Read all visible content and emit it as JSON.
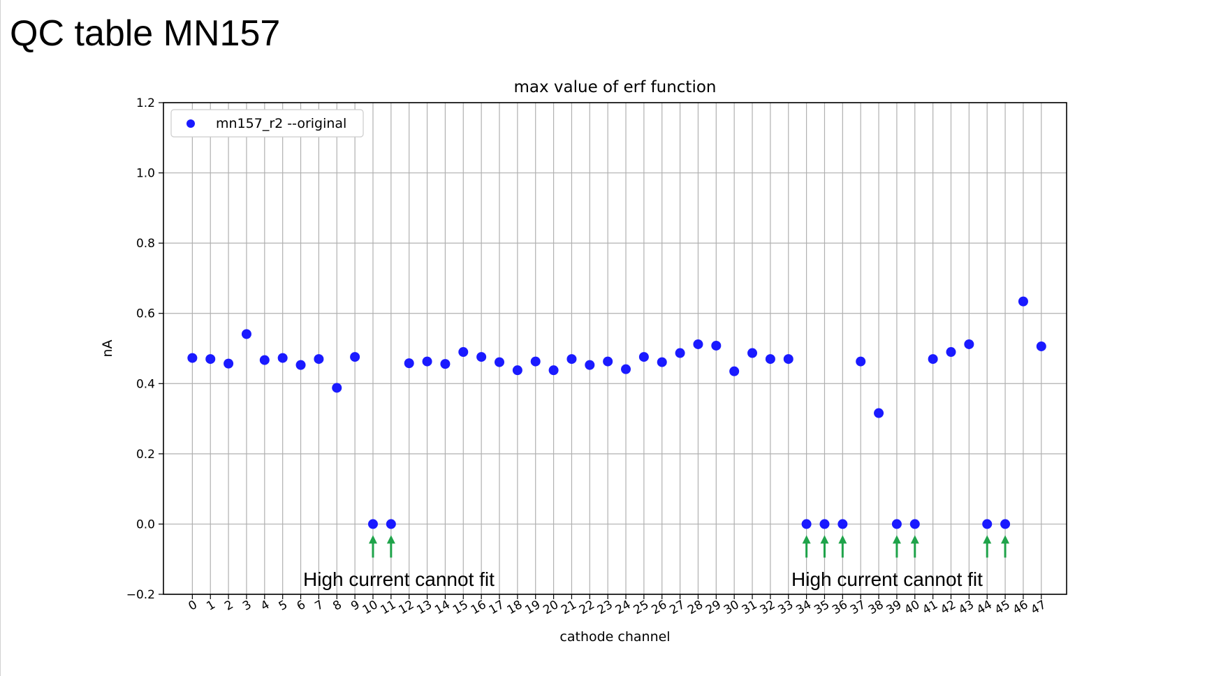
{
  "slide": {
    "title": "QC table MN157"
  },
  "chart_data": {
    "type": "scatter",
    "title": "max value of erf function",
    "xlabel": "cathode channel",
    "ylabel": "nA",
    "ylim": [
      -0.2,
      1.2
    ],
    "xlim": [
      -1.6,
      48.4
    ],
    "yticks": [
      -0.2,
      0.0,
      0.2,
      0.4,
      0.6,
      0.8,
      1.0,
      1.2
    ],
    "ytick_labels": [
      "−0.2",
      "0.0",
      "0.2",
      "0.4",
      "0.6",
      "0.8",
      "1.0",
      "1.2"
    ],
    "xticks": [
      0,
      1,
      2,
      3,
      4,
      5,
      6,
      7,
      8,
      9,
      10,
      11,
      12,
      13,
      14,
      15,
      16,
      17,
      18,
      19,
      20,
      21,
      22,
      23,
      24,
      25,
      26,
      27,
      28,
      29,
      30,
      31,
      32,
      33,
      34,
      35,
      36,
      37,
      38,
      39,
      40,
      41,
      42,
      43,
      44,
      45,
      46,
      47
    ],
    "xtick_labels": [
      "0",
      "1",
      "2",
      "3",
      "4",
      "5",
      "6",
      "7",
      "8",
      "9",
      "10",
      "11",
      "12",
      "13",
      "14",
      "15",
      "16",
      "17",
      "18",
      "19",
      "20",
      "21",
      "22",
      "23",
      "24",
      "25",
      "26",
      "27",
      "28",
      "29",
      "30",
      "31",
      "32",
      "33",
      "34",
      "35",
      "36",
      "37",
      "38",
      "39",
      "40",
      "41",
      "42",
      "43",
      "44",
      "45",
      "46",
      "47"
    ],
    "grid": true,
    "legend_position": "top-left",
    "series": [
      {
        "name": "mn157_r2 --original",
        "color": "#1a1aff",
        "x": [
          0,
          1,
          2,
          3,
          4,
          5,
          6,
          7,
          8,
          9,
          10,
          11,
          12,
          13,
          14,
          15,
          16,
          17,
          18,
          19,
          20,
          21,
          22,
          23,
          24,
          25,
          26,
          27,
          28,
          29,
          30,
          31,
          32,
          33,
          34,
          35,
          36,
          37,
          38,
          39,
          40,
          41,
          42,
          43,
          44,
          45,
          46,
          47
        ],
        "y": [
          0.473,
          0.47,
          0.457,
          0.541,
          0.467,
          0.473,
          0.453,
          0.47,
          0.388,
          0.476,
          0.0,
          0.0,
          0.458,
          0.463,
          0.456,
          0.49,
          0.476,
          0.461,
          0.438,
          0.463,
          0.438,
          0.47,
          0.453,
          0.463,
          0.441,
          0.476,
          0.461,
          0.487,
          0.512,
          0.508,
          0.435,
          0.487,
          0.47,
          0.47,
          0.0,
          0.0,
          0.0,
          0.463,
          0.316,
          0.0,
          0.0,
          0.47,
          0.49,
          0.512,
          0.0,
          0.0,
          0.634,
          0.506
        ]
      }
    ],
    "annotations": [
      {
        "text": "High current cannot fit",
        "arrow_channels": [
          10,
          11
        ],
        "arrow_color": "#1fa34a"
      },
      {
        "text": "High current cannot fit",
        "arrow_channels": [
          34,
          35,
          36,
          39,
          40,
          44,
          45
        ],
        "arrow_color": "#1fa34a"
      }
    ]
  }
}
